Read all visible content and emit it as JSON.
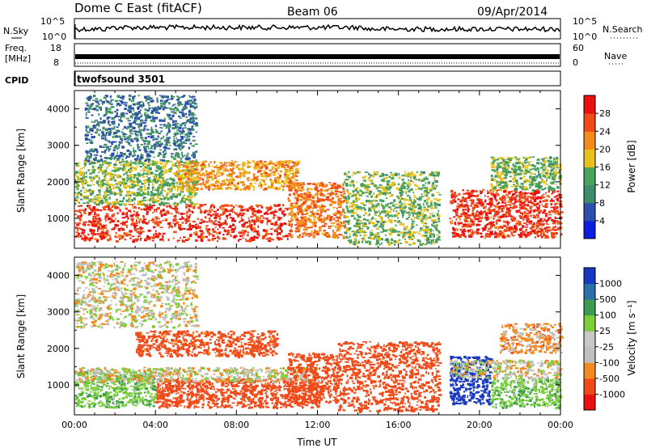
{
  "header": {
    "station": "Dome C East (fitACF)",
    "beam": "Beam 06",
    "date": "09/Apr/2014"
  },
  "noise_panel": {
    "left_label": "N.Sky",
    "left_ticks": [
      "10^5",
      "10^0"
    ],
    "right_label": "N.Search",
    "right_ticks": [
      "10^5",
      "10^0"
    ]
  },
  "freq_panel": {
    "left_label_1": "Freq.",
    "left_label_2": "[MHz]",
    "left_ticks": [
      "18",
      "8"
    ],
    "right_label": "Nave",
    "right_ticks": [
      "60",
      "0"
    ]
  },
  "cpid": {
    "label": "CPID",
    "text": "twofsound 3501"
  },
  "colors": {
    "power_scale": [
      "#0a1fe0",
      "#2d4fae",
      "#3f8c6a",
      "#4aa35a",
      "#e8c21c",
      "#f28a1e",
      "#f04a18",
      "#e81010"
    ],
    "velocity_scale": [
      "#e81010",
      "#f04a18",
      "#f28a1e",
      "#c0c0c0",
      "#c8c8c8",
      "#7ccf3a",
      "#3e9b52",
      "#2d6fa8",
      "#1838c0"
    ]
  },
  "chart_data": [
    {
      "type": "heatmap",
      "title": "Power",
      "ylabel": "Slant Range [km]",
      "xlabel": "",
      "xlim": [
        "00:00",
        "24:00"
      ],
      "ylim": [
        180,
        4500
      ],
      "y_ticks": [
        "1000",
        "2000",
        "3000",
        "4000"
      ],
      "colorbar": {
        "label": "Power [dB]",
        "ticks": [
          "28",
          "24",
          "20",
          "16",
          "12",
          "8",
          "4"
        ],
        "range": [
          0,
          30
        ]
      },
      "echo_regions": [
        {
          "t_start": 0.0,
          "t_end": 10.5,
          "range_min": 400,
          "range_max": 1400,
          "power": 26
        },
        {
          "t_start": 0.0,
          "t_end": 6.0,
          "range_min": 1400,
          "range_max": 2600,
          "power": 14
        },
        {
          "t_start": 0.5,
          "t_end": 6.0,
          "range_min": 2600,
          "range_max": 4400,
          "power": 8
        },
        {
          "t_start": 5.0,
          "t_end": 11.0,
          "range_min": 1800,
          "range_max": 2600,
          "power": 20
        },
        {
          "t_start": 10.5,
          "t_end": 13.3,
          "range_min": 500,
          "range_max": 2000,
          "power": 22
        },
        {
          "t_start": 13.3,
          "t_end": 18.0,
          "range_min": 300,
          "range_max": 2300,
          "power": 14
        },
        {
          "t_start": 18.5,
          "t_end": 24.0,
          "range_min": 500,
          "range_max": 1800,
          "power": 26
        },
        {
          "t_start": 20.5,
          "t_end": 24.0,
          "range_min": 1800,
          "range_max": 2700,
          "power": 14
        }
      ]
    },
    {
      "type": "heatmap",
      "title": "Velocity",
      "ylabel": "Slant Range [km]",
      "xlabel": "Time UT",
      "xlim": [
        "00:00",
        "24:00"
      ],
      "x_ticks": [
        "00:00",
        "04:00",
        "08:00",
        "12:00",
        "16:00",
        "20:00",
        "00:00"
      ],
      "ylim": [
        180,
        4500
      ],
      "y_ticks": [
        "1000",
        "2000",
        "3000",
        "4000"
      ],
      "colorbar": {
        "label": "Velocity [m s⁻¹]",
        "ticks": [
          "1000",
          "500",
          "100",
          "25",
          "-25",
          "-100",
          "-500",
          "-1000"
        ]
      },
      "echo_regions": [
        {
          "t_start": 0.0,
          "t_end": 4.0,
          "range_min": 400,
          "range_max": 1400,
          "velocity": 80
        },
        {
          "t_start": 4.0,
          "t_end": 12.0,
          "range_min": 400,
          "range_max": 1200,
          "velocity": -300
        },
        {
          "t_start": 0.0,
          "t_end": 12.0,
          "range_min": 1100,
          "range_max": 1500,
          "velocity": 0
        },
        {
          "t_start": 3.0,
          "t_end": 10.0,
          "range_min": 1800,
          "range_max": 2500,
          "velocity": -150
        },
        {
          "t_start": 0.0,
          "t_end": 6.0,
          "range_min": 2600,
          "range_max": 4400,
          "velocity": 0
        },
        {
          "t_start": 10.5,
          "t_end": 13.0,
          "range_min": 500,
          "range_max": 1900,
          "velocity": -300
        },
        {
          "t_start": 13.0,
          "t_end": 18.0,
          "range_min": 300,
          "range_max": 2200,
          "velocity": -200
        },
        {
          "t_start": 18.5,
          "t_end": 20.5,
          "range_min": 500,
          "range_max": 1800,
          "velocity": 600
        },
        {
          "t_start": 20.5,
          "t_end": 24.0,
          "range_min": 400,
          "range_max": 1200,
          "velocity": 80
        },
        {
          "t_start": 18.5,
          "t_end": 24.0,
          "range_min": 1200,
          "range_max": 1700,
          "velocity": 0
        },
        {
          "t_start": 21.0,
          "t_end": 24.0,
          "range_min": 1900,
          "range_max": 2700,
          "velocity": -60
        }
      ]
    }
  ]
}
